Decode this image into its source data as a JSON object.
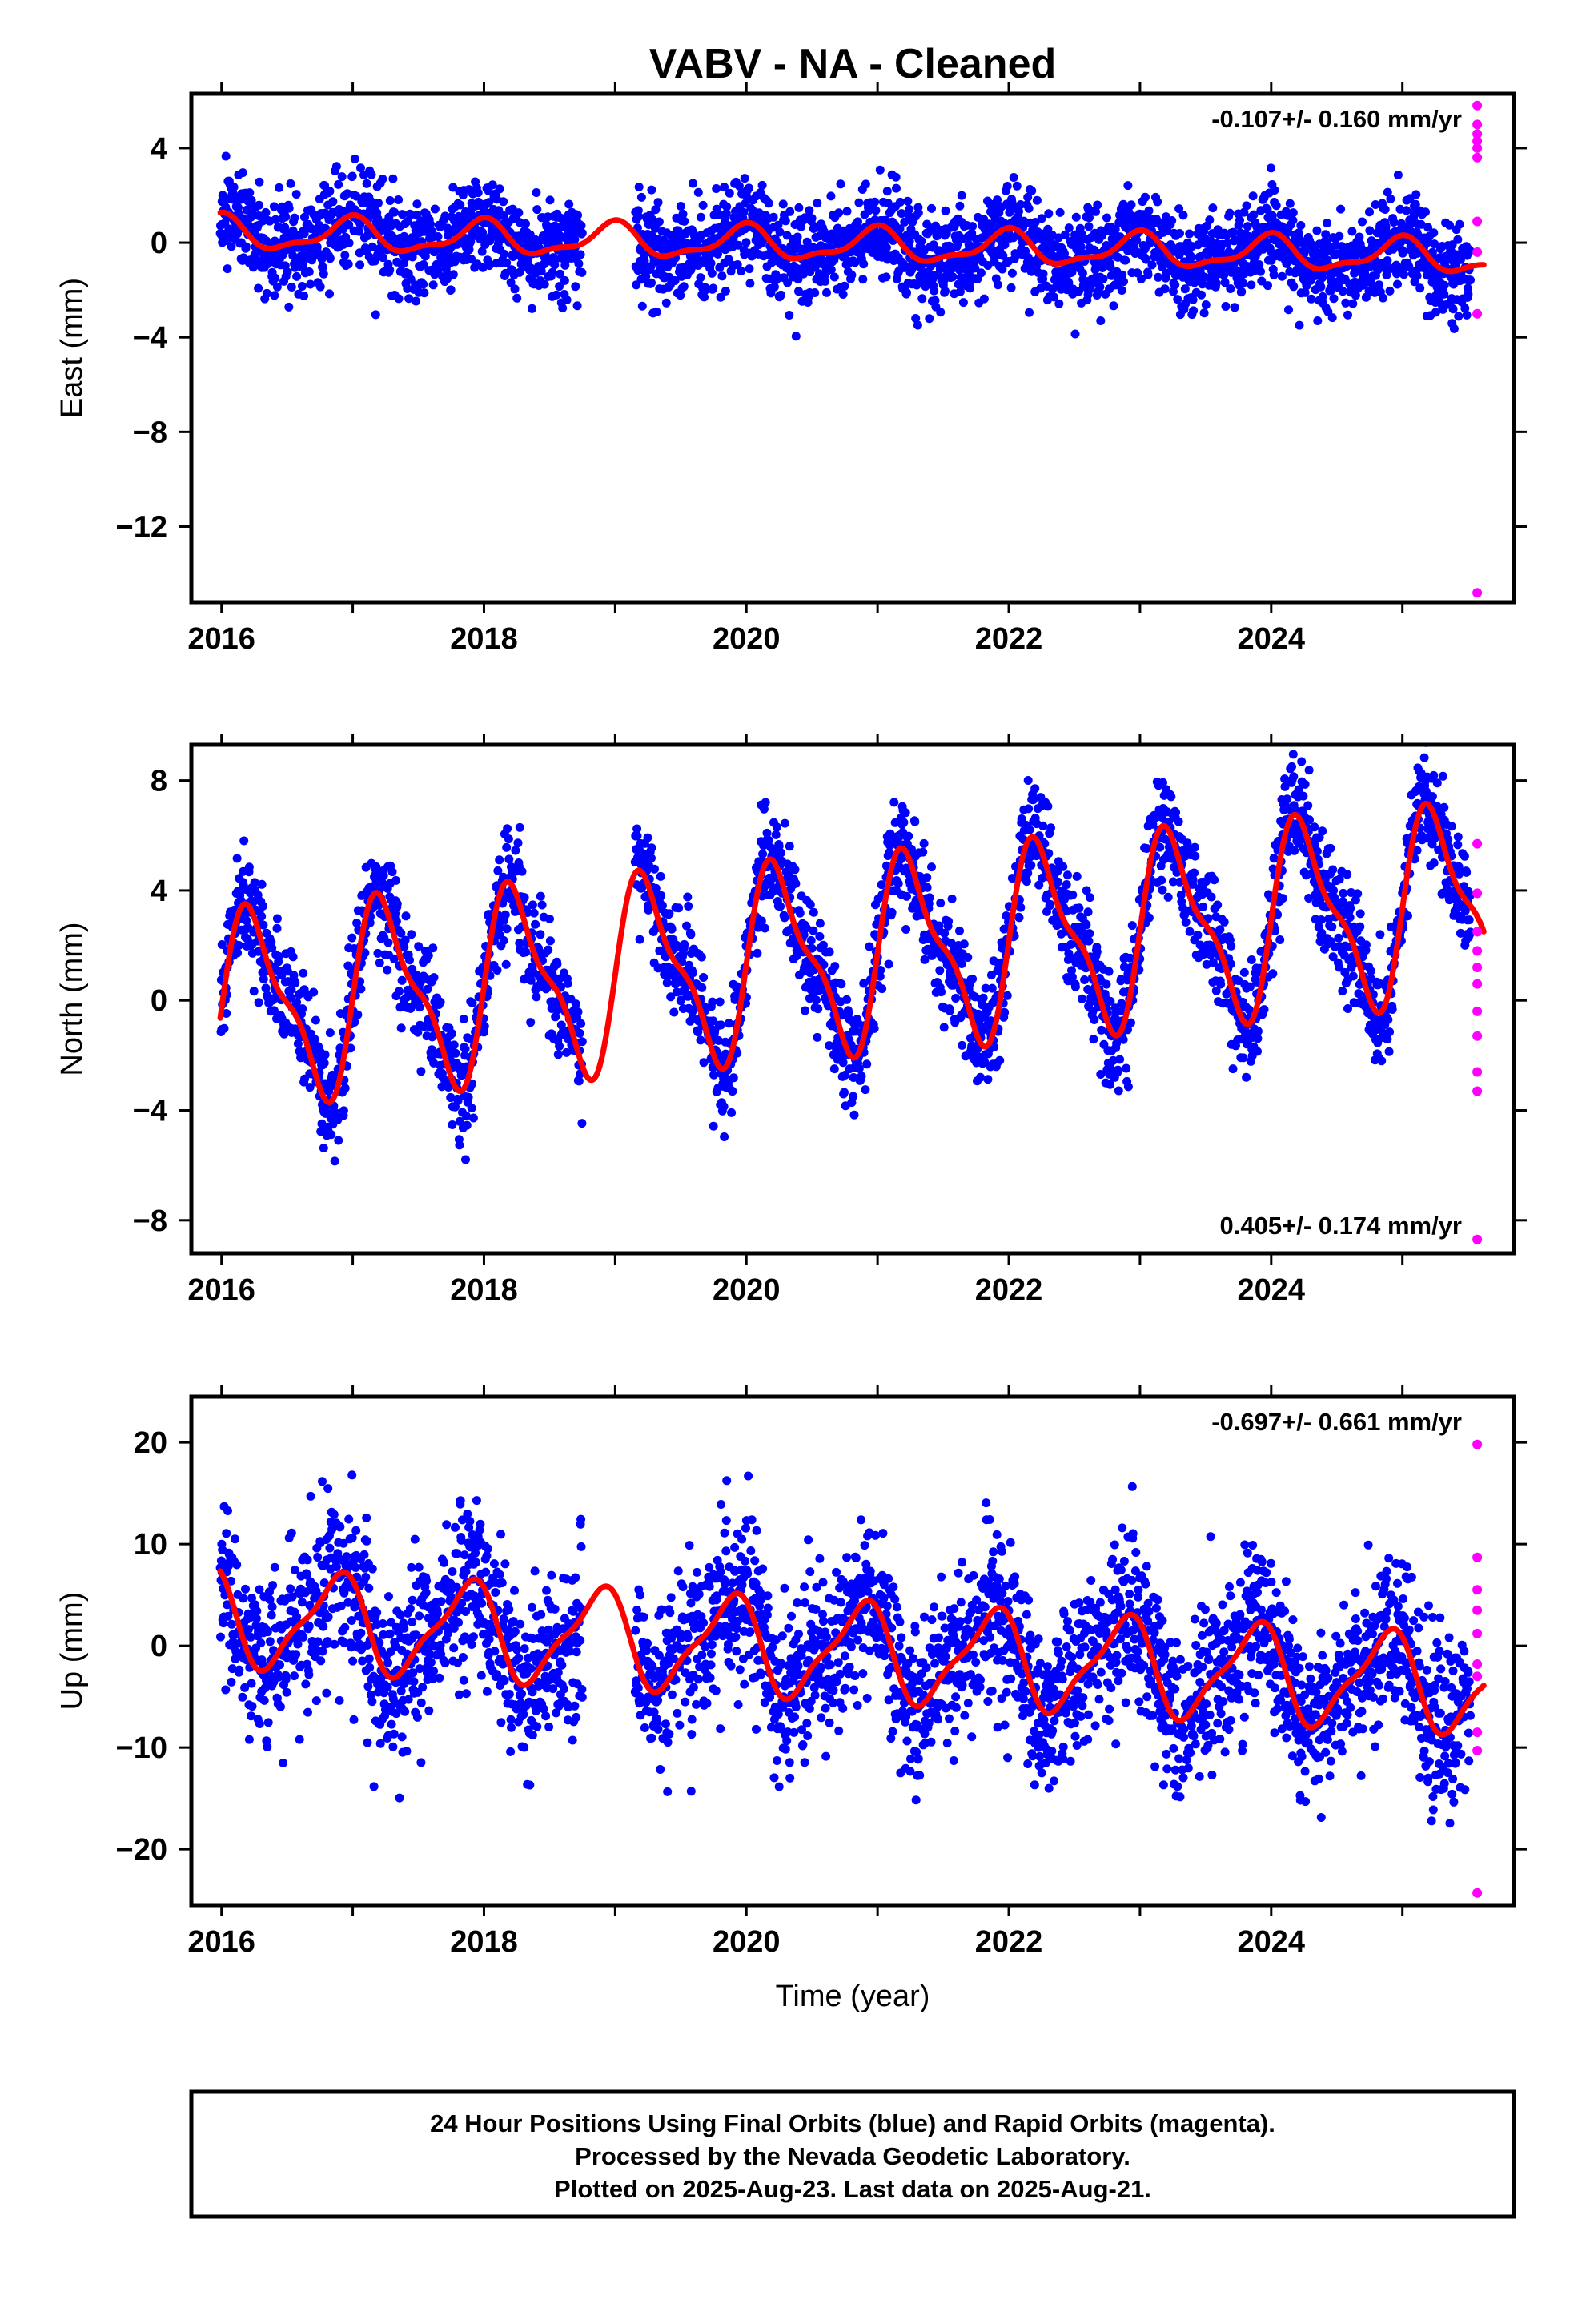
{
  "title": "VABV  - NA - Cleaned",
  "footer": {
    "lines": [
      "24 Hour Positions Using Final Orbits (blue) and Rapid Orbits (magenta).",
      "Processed by the Nevada Geodetic Laboratory.",
      "Plotted on 2025-Aug-23. Last data on 2025-Aug-21."
    ]
  },
  "colors": {
    "final": "#0000ff",
    "rapid": "#ff00ff",
    "fit": "#ff0000",
    "frame": "#000000"
  },
  "chart_data": [
    {
      "type": "scatter",
      "name": "east",
      "ylabel": "East (mm)",
      "xlabel": "",
      "xlim": [
        2015.77,
        2025.85
      ],
      "ylim": [
        -15.2,
        6.3
      ],
      "xticks": [
        2016,
        2018,
        2020,
        2022,
        2024
      ],
      "xtick_labels": [
        "2016",
        "2018",
        "2020",
        "2022",
        "2024"
      ],
      "yticks": [
        4,
        0,
        -4,
        -8,
        -12
      ],
      "ytick_labels": [
        "4",
        "0",
        "−4",
        "−8",
        "−12"
      ],
      "rate_text": "-0.107+/- 0.160 mm/yr",
      "rate_position": "top-right",
      "model": {
        "offset": 0.4,
        "rate": -0.107,
        "annual_amp": 0.65,
        "annual_phase": 1.7,
        "semi_amp": 0.25,
        "scatter_sd": 1.0,
        "seed": 11
      },
      "data_gap": [
        2018.75,
        2019.15
      ],
      "rapid_values": [
        5.8,
        5.0,
        4.6,
        4.3,
        4.0,
        3.6,
        0.9,
        -0.4,
        -3.0,
        -14.8
      ]
    },
    {
      "type": "scatter",
      "name": "north",
      "ylabel": "North (mm)",
      "xlabel": "",
      "xlim": [
        2015.77,
        2025.85
      ],
      "ylim": [
        -9.2,
        9.3
      ],
      "xticks": [
        2016,
        2018,
        2020,
        2022,
        2024
      ],
      "xtick_labels": [
        "2016",
        "2018",
        "2020",
        "2022",
        "2024"
      ],
      "yticks": [
        8,
        4,
        0,
        -4,
        -8
      ],
      "ytick_labels": [
        "8",
        "4",
        "0",
        "−4",
        "−8"
      ],
      "rate_text": "0.405+/- 0.174 mm/yr",
      "rate_position": "bottom-right",
      "model": {
        "offset": -0.3,
        "rate": 0.405,
        "annual_amp": 3.2,
        "annual_phase": 0.0,
        "semi_amp": 1.1,
        "scatter_sd": 1.0,
        "seed": 23
      },
      "data_gap": [
        2018.75,
        2019.15
      ],
      "rapid_values": [
        5.7,
        3.9,
        2.5,
        1.8,
        1.2,
        0.6,
        -0.4,
        -1.3,
        -2.6,
        -3.3,
        -8.7
      ]
    },
    {
      "type": "scatter",
      "name": "up",
      "ylabel": "Up (mm)",
      "xlabel": "Time (year)",
      "xlim": [
        2015.77,
        2025.85
      ],
      "ylim": [
        -25.5,
        24.5
      ],
      "xticks": [
        2016,
        2018,
        2020,
        2022,
        2024
      ],
      "xtick_labels": [
        "2016",
        "2018",
        "2020",
        "2022",
        "2024"
      ],
      "yticks": [
        20,
        10,
        0,
        -10,
        -20
      ],
      "ytick_labels": [
        "20",
        "10",
        "0",
        "−10",
        "−20"
      ],
      "rate_text": "-0.697+/- 0.661 mm/yr",
      "rate_position": "top-right",
      "model": {
        "offset": 2.8,
        "rate": -0.697,
        "annual_amp": 4.5,
        "annual_phase": 2.4,
        "semi_amp": 1.3,
        "scatter_sd": 4.2,
        "seed": 37
      },
      "data_gap": [
        2018.75,
        2019.15
      ],
      "rapid_values": [
        19.8,
        8.7,
        5.5,
        3.5,
        1.2,
        -1.8,
        -3.0,
        -8.5,
        -10.3,
        -24.3
      ]
    }
  ]
}
